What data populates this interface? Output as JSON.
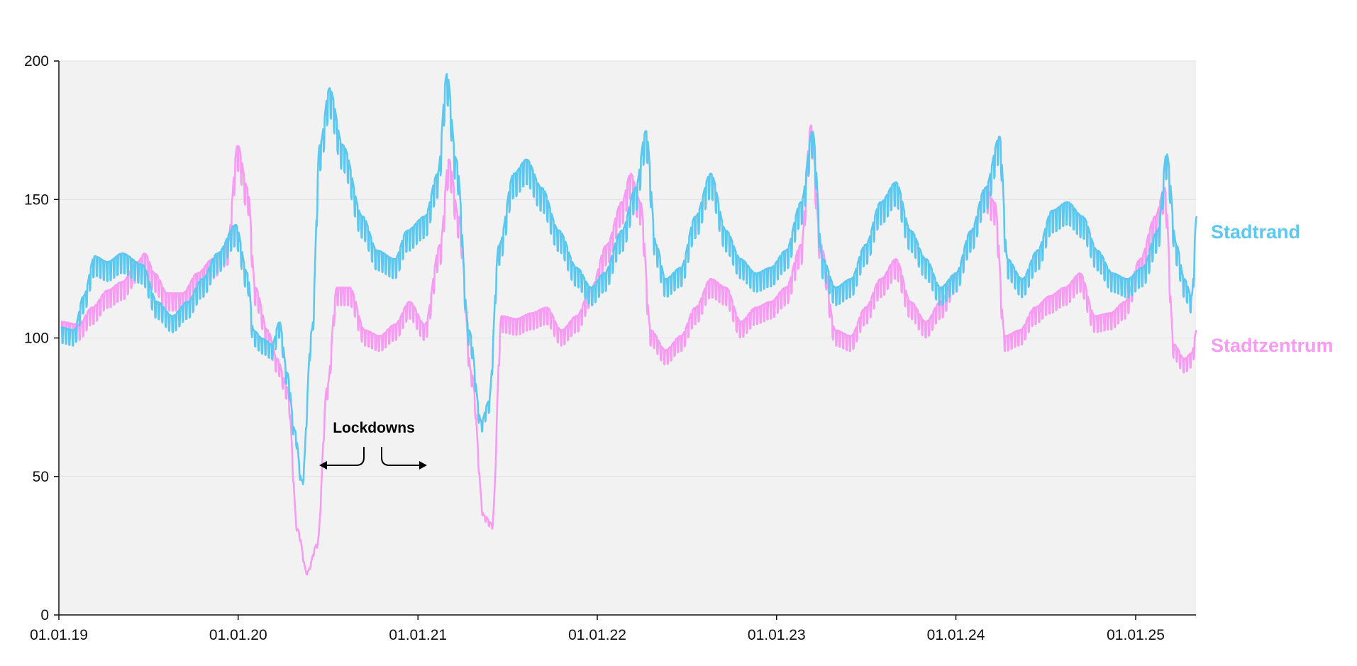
{
  "chart_data": {
    "type": "line",
    "title": "",
    "xlabel": "",
    "ylabel": "",
    "x_axis": {
      "type": "date",
      "ticks": [
        {
          "date": "2019-01-01",
          "label": "01.01.19"
        },
        {
          "date": "2020-01-01",
          "label": "01.01.20"
        },
        {
          "date": "2021-01-01",
          "label": "01.01.21"
        },
        {
          "date": "2022-01-01",
          "label": "01.01.22"
        },
        {
          "date": "2023-01-01",
          "label": "01.01.23"
        },
        {
          "date": "2024-01-01",
          "label": "01.01.24"
        },
        {
          "date": "2025-01-01",
          "label": "01.01.25"
        }
      ],
      "range": [
        "2019-01-01",
        "2025-05-05"
      ]
    },
    "y_axis": {
      "range": [
        0,
        200
      ],
      "ticks": [
        0,
        50,
        100,
        150,
        200
      ],
      "tick_labels": [
        "0",
        "50",
        "100",
        "150",
        "200"
      ]
    },
    "grid": "horizontal",
    "background": "#f2f2f2",
    "legend": "direct labels at right end of lines",
    "series": [
      {
        "name": "Stadtrand",
        "color": "#5cc8ef",
        "values": [
          [
            "2019-01-05",
            101
          ],
          [
            "2019-02-01",
            100
          ],
          [
            "2019-02-20",
            112
          ],
          [
            "2019-03-15",
            126
          ],
          [
            "2019-04-10",
            124
          ],
          [
            "2019-05-10",
            127
          ],
          [
            "2019-06-20",
            123
          ],
          [
            "2019-07-20",
            110
          ],
          [
            "2019-08-20",
            105
          ],
          [
            "2019-09-20",
            110
          ],
          [
            "2019-10-20",
            118
          ],
          [
            "2019-11-20",
            127
          ],
          [
            "2019-12-27",
            137
          ],
          [
            "2020-01-20",
            120
          ],
          [
            "2020-02-01",
            100
          ],
          [
            "2020-02-20",
            97
          ],
          [
            "2020-03-10",
            95
          ],
          [
            "2020-03-25",
            103
          ],
          [
            "2020-04-10",
            85
          ],
          [
            "2020-04-25",
            65
          ],
          [
            "2020-05-10",
            47
          ],
          [
            "2020-05-30",
            100
          ],
          [
            "2020-06-15",
            165
          ],
          [
            "2020-07-05",
            185
          ],
          [
            "2020-08-01",
            165
          ],
          [
            "2020-09-10",
            140
          ],
          [
            "2020-10-10",
            128
          ],
          [
            "2020-11-15",
            125
          ],
          [
            "2020-12-10",
            135
          ],
          [
            "2021-01-15",
            140
          ],
          [
            "2021-02-10",
            155
          ],
          [
            "2021-03-01",
            190
          ],
          [
            "2021-03-20",
            160
          ],
          [
            "2021-04-15",
            100
          ],
          [
            "2021-05-10",
            68
          ],
          [
            "2021-05-25",
            75
          ],
          [
            "2021-06-15",
            130
          ],
          [
            "2021-07-15",
            155
          ],
          [
            "2021-08-10",
            160
          ],
          [
            "2021-09-10",
            150
          ],
          [
            "2021-10-15",
            135
          ],
          [
            "2021-11-20",
            122
          ],
          [
            "2021-12-20",
            115
          ],
          [
            "2022-01-15",
            120
          ],
          [
            "2022-02-20",
            135
          ],
          [
            "2022-03-20",
            150
          ],
          [
            "2022-04-10",
            170
          ],
          [
            "2022-05-01",
            130
          ],
          [
            "2022-05-20",
            118
          ],
          [
            "2022-06-20",
            122
          ],
          [
            "2022-07-20",
            140
          ],
          [
            "2022-08-20",
            155
          ],
          [
            "2022-09-20",
            135
          ],
          [
            "2022-10-20",
            125
          ],
          [
            "2022-11-20",
            120
          ],
          [
            "2022-12-20",
            122
          ],
          [
            "2023-01-20",
            128
          ],
          [
            "2023-02-20",
            145
          ],
          [
            "2023-03-15",
            170
          ],
          [
            "2023-04-05",
            125
          ],
          [
            "2023-05-01",
            115
          ],
          [
            "2023-06-01",
            118
          ],
          [
            "2023-07-01",
            130
          ],
          [
            "2023-08-01",
            145
          ],
          [
            "2023-09-01",
            152
          ],
          [
            "2023-10-01",
            135
          ],
          [
            "2023-11-01",
            125
          ],
          [
            "2023-12-01",
            115
          ],
          [
            "2024-01-01",
            120
          ],
          [
            "2024-02-01",
            135
          ],
          [
            "2024-03-01",
            150
          ],
          [
            "2024-03-30",
            168
          ],
          [
            "2024-04-15",
            125
          ],
          [
            "2024-05-15",
            118
          ],
          [
            "2024-06-15",
            128
          ],
          [
            "2024-07-15",
            142
          ],
          [
            "2024-08-15",
            145
          ],
          [
            "2024-09-15",
            140
          ],
          [
            "2024-10-15",
            128
          ],
          [
            "2024-11-15",
            120
          ],
          [
            "2024-12-15",
            118
          ],
          [
            "2025-01-15",
            122
          ],
          [
            "2025-02-15",
            135
          ],
          [
            "2025-03-05",
            162
          ],
          [
            "2025-03-25",
            130
          ],
          [
            "2025-04-10",
            118
          ],
          [
            "2025-04-25",
            112
          ],
          [
            "2025-05-05",
            140
          ]
        ]
      },
      {
        "name": "Stadtzentrum",
        "color": "#f79cf2",
        "values": [
          [
            "2019-01-05",
            103
          ],
          [
            "2019-02-10",
            102
          ],
          [
            "2019-03-10",
            108
          ],
          [
            "2019-04-10",
            114
          ],
          [
            "2019-05-10",
            117
          ],
          [
            "2019-06-10",
            124
          ],
          [
            "2019-06-25",
            127
          ],
          [
            "2019-07-15",
            120
          ],
          [
            "2019-08-10",
            113
          ],
          [
            "2019-09-10",
            113
          ],
          [
            "2019-10-10",
            120
          ],
          [
            "2019-11-10",
            125
          ],
          [
            "2019-12-10",
            130
          ],
          [
            "2019-12-31",
            165
          ],
          [
            "2020-01-20",
            150
          ],
          [
            "2020-02-05",
            115
          ],
          [
            "2020-03-01",
            100
          ],
          [
            "2020-03-20",
            90
          ],
          [
            "2020-04-10",
            80
          ],
          [
            "2020-05-01",
            30
          ],
          [
            "2020-05-20",
            15
          ],
          [
            "2020-06-10",
            25
          ],
          [
            "2020-06-30",
            80
          ],
          [
            "2020-07-20",
            115
          ],
          [
            "2020-08-15",
            115
          ],
          [
            "2020-09-15",
            100
          ],
          [
            "2020-10-15",
            98
          ],
          [
            "2020-11-15",
            102
          ],
          [
            "2020-12-15",
            110
          ],
          [
            "2021-01-15",
            102
          ],
          [
            "2021-02-15",
            130
          ],
          [
            "2021-03-05",
            160
          ],
          [
            "2021-03-25",
            140
          ],
          [
            "2021-04-20",
            85
          ],
          [
            "2021-05-15",
            35
          ],
          [
            "2021-06-01",
            32
          ],
          [
            "2021-06-20",
            105
          ],
          [
            "2021-07-20",
            104
          ],
          [
            "2021-08-20",
            106
          ],
          [
            "2021-09-20",
            108
          ],
          [
            "2021-10-20",
            100
          ],
          [
            "2021-11-20",
            105
          ],
          [
            "2021-12-20",
            115
          ],
          [
            "2022-01-20",
            130
          ],
          [
            "2022-02-20",
            145
          ],
          [
            "2022-03-10",
            155
          ],
          [
            "2022-03-30",
            145
          ],
          [
            "2022-04-20",
            100
          ],
          [
            "2022-05-20",
            93
          ],
          [
            "2022-06-20",
            98
          ],
          [
            "2022-07-20",
            108
          ],
          [
            "2022-08-20",
            118
          ],
          [
            "2022-09-20",
            115
          ],
          [
            "2022-10-20",
            103
          ],
          [
            "2022-11-20",
            108
          ],
          [
            "2022-12-20",
            110
          ],
          [
            "2023-01-20",
            115
          ],
          [
            "2023-02-20",
            130
          ],
          [
            "2023-03-12",
            172
          ],
          [
            "2023-04-01",
            130
          ],
          [
            "2023-05-01",
            100
          ],
          [
            "2023-06-01",
            98
          ],
          [
            "2023-07-01",
            108
          ],
          [
            "2023-08-01",
            118
          ],
          [
            "2023-09-01",
            125
          ],
          [
            "2023-10-01",
            110
          ],
          [
            "2023-11-01",
            103
          ],
          [
            "2023-12-01",
            110
          ],
          [
            "2024-01-01",
            120
          ],
          [
            "2024-02-01",
            135
          ],
          [
            "2024-03-01",
            150
          ],
          [
            "2024-03-20",
            145
          ],
          [
            "2024-04-10",
            98
          ],
          [
            "2024-05-10",
            100
          ],
          [
            "2024-06-10",
            108
          ],
          [
            "2024-07-10",
            112
          ],
          [
            "2024-08-10",
            115
          ],
          [
            "2024-09-10",
            120
          ],
          [
            "2024-10-10",
            105
          ],
          [
            "2024-11-10",
            106
          ],
          [
            "2024-12-10",
            110
          ],
          [
            "2025-01-10",
            125
          ],
          [
            "2025-02-10",
            140
          ],
          [
            "2025-03-01",
            150
          ],
          [
            "2025-03-20",
            95
          ],
          [
            "2025-04-10",
            90
          ],
          [
            "2025-04-25",
            92
          ],
          [
            "2025-05-05",
            100
          ]
        ]
      }
    ],
    "annotations": [
      {
        "text": "Lockdowns",
        "points_to": [
          "2020-05-20",
          "2021-05-15"
        ]
      }
    ]
  }
}
